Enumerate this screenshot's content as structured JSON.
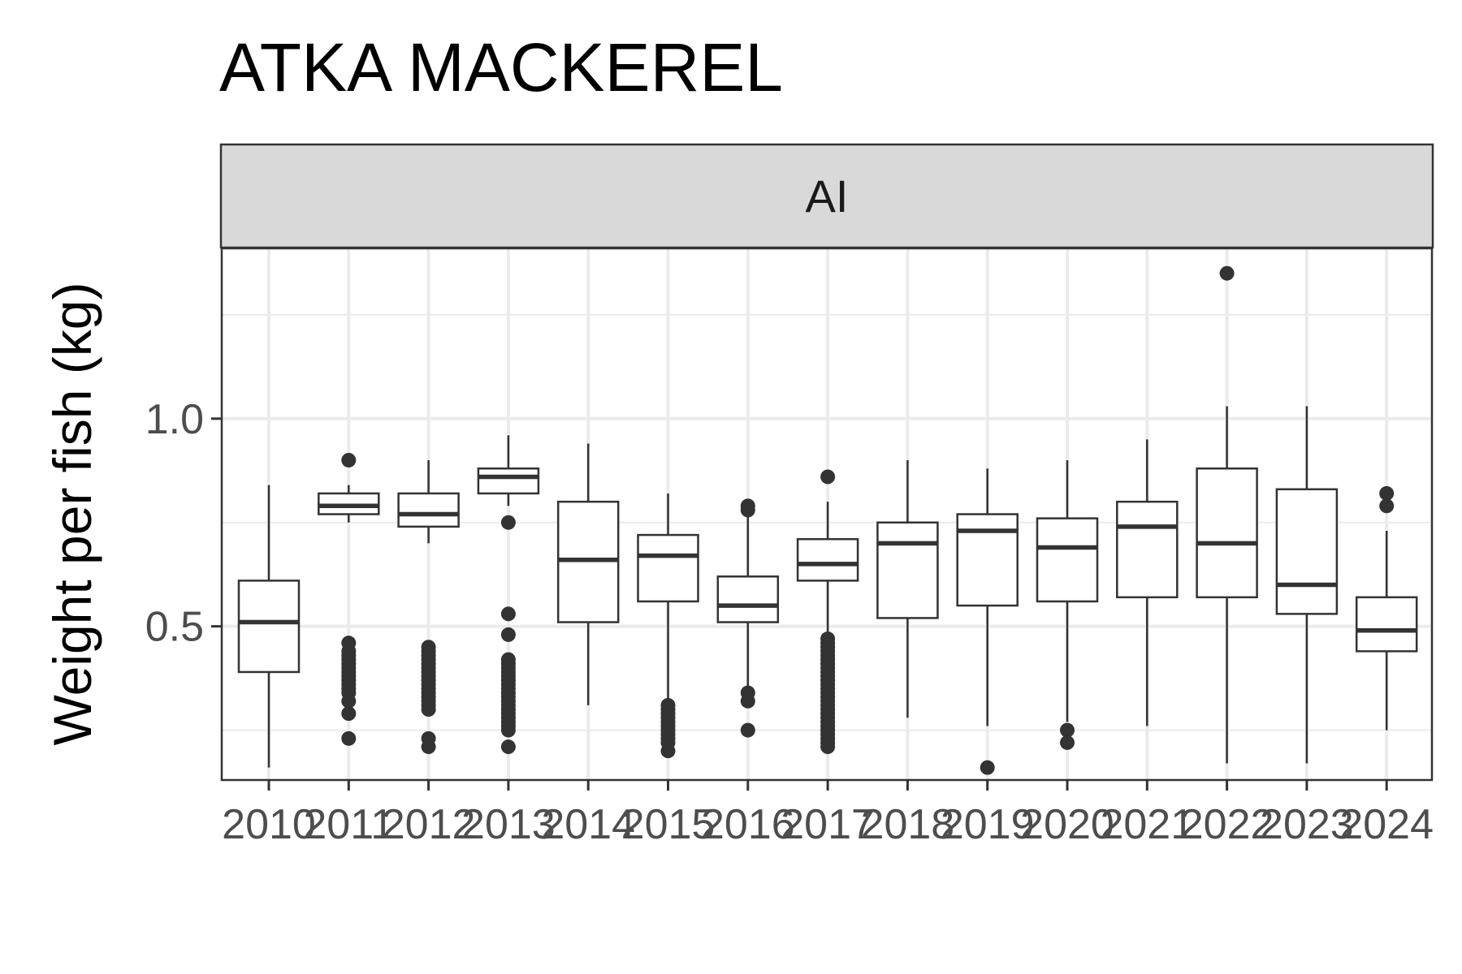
{
  "chart_data": {
    "type": "boxplot",
    "title": "ATKA MACKEREL",
    "facet": "AI",
    "xlabel": "",
    "ylabel": "Weight per fish (kg)",
    "ylim": [
      0.13,
      1.41
    ],
    "yticks": [
      0.5,
      1.0
    ],
    "ytick_labels": [
      "0.5",
      "1.0"
    ],
    "grid": true,
    "boxes": [
      {
        "x": "2010",
        "min": 0.16,
        "q1": 0.39,
        "median": 0.51,
        "q3": 0.61,
        "max": 0.84,
        "outliers": []
      },
      {
        "x": "2011",
        "min": 0.75,
        "q1": 0.77,
        "median": 0.79,
        "q3": 0.82,
        "max": 0.84,
        "outliers": [
          0.9,
          0.46,
          0.44,
          0.43,
          0.42,
          0.41,
          0.4,
          0.39,
          0.38,
          0.37,
          0.36,
          0.35,
          0.34,
          0.32,
          0.29,
          0.23
        ]
      },
      {
        "x": "2012",
        "min": 0.7,
        "q1": 0.74,
        "median": 0.77,
        "q3": 0.82,
        "max": 0.9,
        "outliers": [
          0.45,
          0.44,
          0.43,
          0.42,
          0.41,
          0.4,
          0.39,
          0.38,
          0.37,
          0.36,
          0.35,
          0.34,
          0.33,
          0.32,
          0.31,
          0.3,
          0.23,
          0.21
        ]
      },
      {
        "x": "2013",
        "min": 0.79,
        "q1": 0.82,
        "median": 0.86,
        "q3": 0.88,
        "max": 0.96,
        "outliers": [
          0.75,
          0.53,
          0.48,
          0.42,
          0.41,
          0.4,
          0.39,
          0.38,
          0.37,
          0.36,
          0.35,
          0.34,
          0.33,
          0.32,
          0.31,
          0.3,
          0.29,
          0.28,
          0.27,
          0.26,
          0.25,
          0.21
        ]
      },
      {
        "x": "2014",
        "min": 0.31,
        "q1": 0.51,
        "median": 0.66,
        "q3": 0.8,
        "max": 0.94,
        "outliers": []
      },
      {
        "x": "2015",
        "min": 0.32,
        "q1": 0.56,
        "median": 0.67,
        "q3": 0.72,
        "max": 0.82,
        "outliers": [
          0.31,
          0.3,
          0.29,
          0.28,
          0.27,
          0.26,
          0.25,
          0.24,
          0.23,
          0.22,
          0.2
        ]
      },
      {
        "x": "2016",
        "min": 0.35,
        "q1": 0.51,
        "median": 0.55,
        "q3": 0.62,
        "max": 0.77,
        "outliers": [
          0.79,
          0.78,
          0.34,
          0.32,
          0.25
        ]
      },
      {
        "x": "2017",
        "min": 0.47,
        "q1": 0.61,
        "median": 0.65,
        "q3": 0.71,
        "max": 0.8,
        "outliers": [
          0.86,
          0.47,
          0.46,
          0.45,
          0.44,
          0.43,
          0.42,
          0.41,
          0.4,
          0.39,
          0.38,
          0.37,
          0.36,
          0.35,
          0.34,
          0.33,
          0.32,
          0.31,
          0.3,
          0.29,
          0.28,
          0.27,
          0.26,
          0.25,
          0.24,
          0.23,
          0.22,
          0.21
        ]
      },
      {
        "x": "2018",
        "min": 0.28,
        "q1": 0.52,
        "median": 0.7,
        "q3": 0.75,
        "max": 0.9,
        "outliers": []
      },
      {
        "x": "2019",
        "min": 0.26,
        "q1": 0.55,
        "median": 0.73,
        "q3": 0.77,
        "max": 0.88,
        "outliers": [
          0.16
        ]
      },
      {
        "x": "2020",
        "min": 0.27,
        "q1": 0.56,
        "median": 0.69,
        "q3": 0.76,
        "max": 0.9,
        "outliers": [
          0.25,
          0.22
        ]
      },
      {
        "x": "2021",
        "min": 0.26,
        "q1": 0.57,
        "median": 0.74,
        "q3": 0.8,
        "max": 0.95,
        "outliers": []
      },
      {
        "x": "2022",
        "min": 0.17,
        "q1": 0.57,
        "median": 0.7,
        "q3": 0.88,
        "max": 1.03,
        "outliers": [
          1.35
        ]
      },
      {
        "x": "2023",
        "min": 0.17,
        "q1": 0.53,
        "median": 0.6,
        "q3": 0.83,
        "max": 1.03,
        "outliers": []
      },
      {
        "x": "2024",
        "min": 0.25,
        "q1": 0.44,
        "median": 0.49,
        "q3": 0.57,
        "max": 0.73,
        "outliers": [
          0.82,
          0.79
        ]
      }
    ],
    "colors": {
      "box_outline": "#333333",
      "strip_fill": "#d9d9d9",
      "grid": "#ebebeb",
      "panel_border": "#333333"
    }
  }
}
